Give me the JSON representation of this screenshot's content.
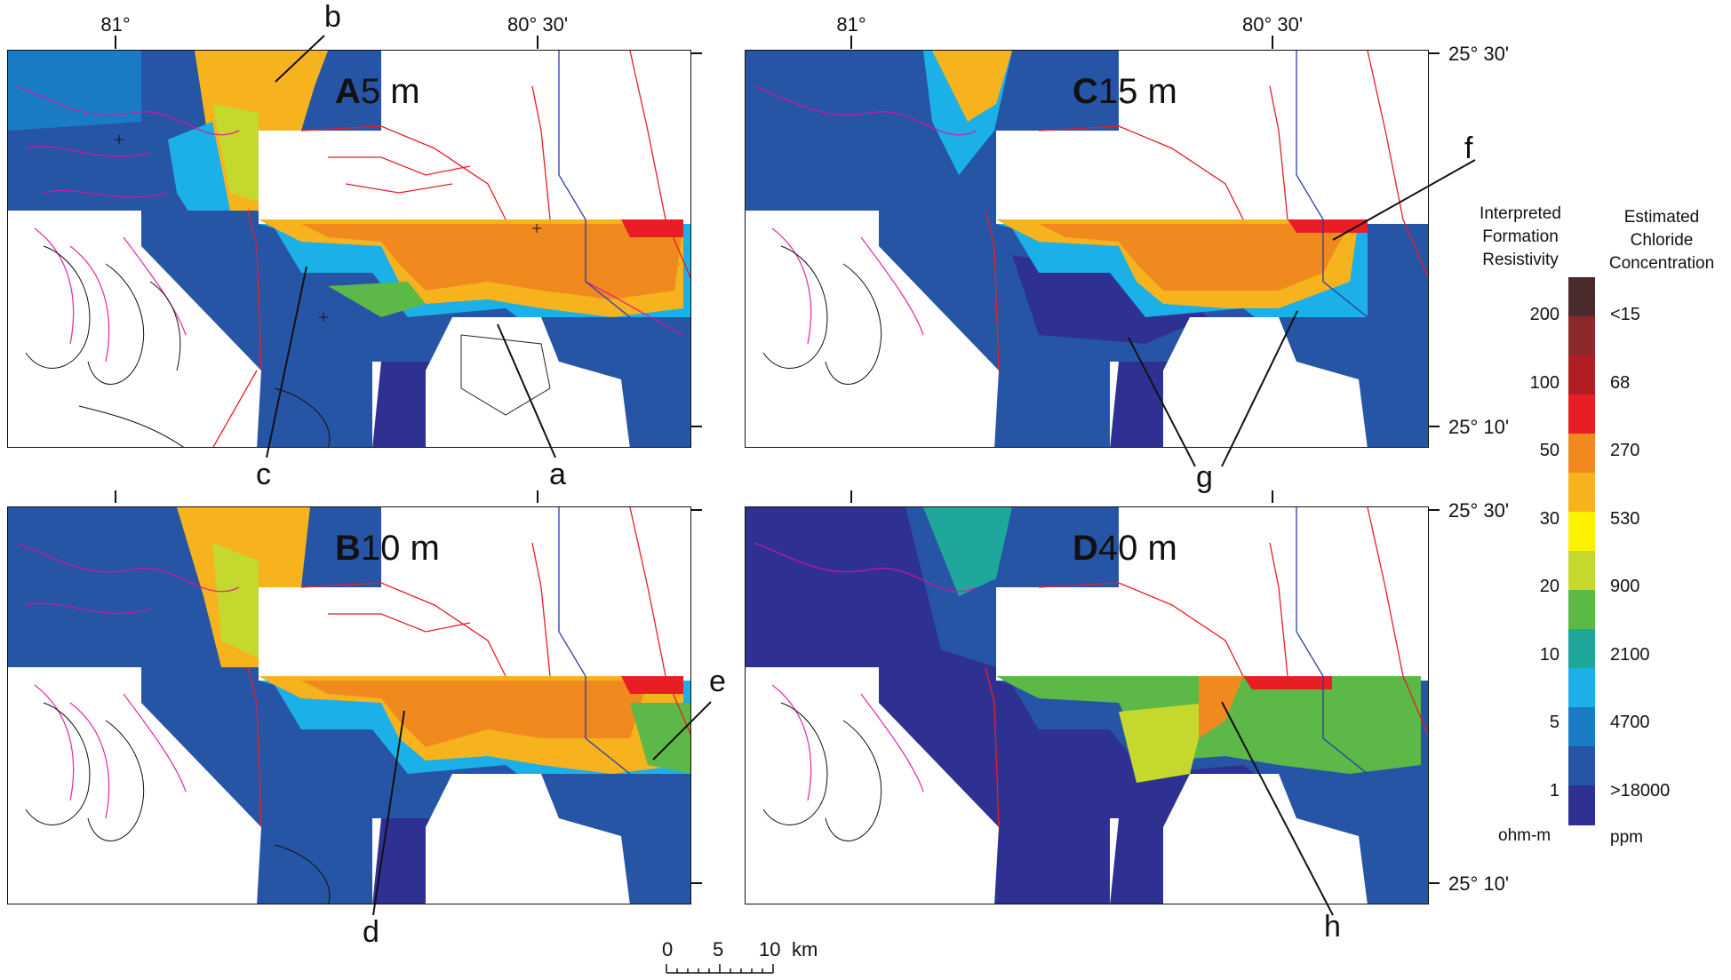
{
  "longitude_ticks": [
    "81°",
    "80° 30'"
  ],
  "latitude_ticks": [
    "25° 30'",
    "25° 10'"
  ],
  "panels": [
    {
      "letter": "A",
      "depth": "5 m"
    },
    {
      "letter": "B",
      "depth": "10 m"
    },
    {
      "letter": "C",
      "depth": "15 m"
    },
    {
      "letter": "D",
      "depth": "40 m"
    }
  ],
  "callouts": [
    "a",
    "b",
    "c",
    "d",
    "e",
    "f",
    "g",
    "h"
  ],
  "legend": {
    "title_left": [
      "Interpreted",
      "Formation",
      "Resistivity"
    ],
    "title_right": [
      "Estimated",
      "Chloride",
      "Concentration"
    ],
    "resistivity": [
      "200",
      "100",
      "50",
      "30",
      "20",
      "10",
      "5",
      "1"
    ],
    "chloride": [
      "<15",
      "68",
      "270",
      "530",
      "900",
      "2100",
      "4700",
      ">18000"
    ],
    "unit_left": "ohm-m",
    "unit_right": "ppm",
    "colors": [
      "#4a2a2a",
      "#8a2a2a",
      "#b01e24",
      "#e81e24",
      "#f08a1e",
      "#f6b31e",
      "#fff200",
      "#c4d82e",
      "#5cb847",
      "#1fa79c",
      "#1cb0e8",
      "#1b7cc6",
      "#2755a6",
      "#2e3192"
    ]
  },
  "scale_bar": {
    "labels": [
      "0",
      "5",
      "10"
    ],
    "unit": "km"
  }
}
